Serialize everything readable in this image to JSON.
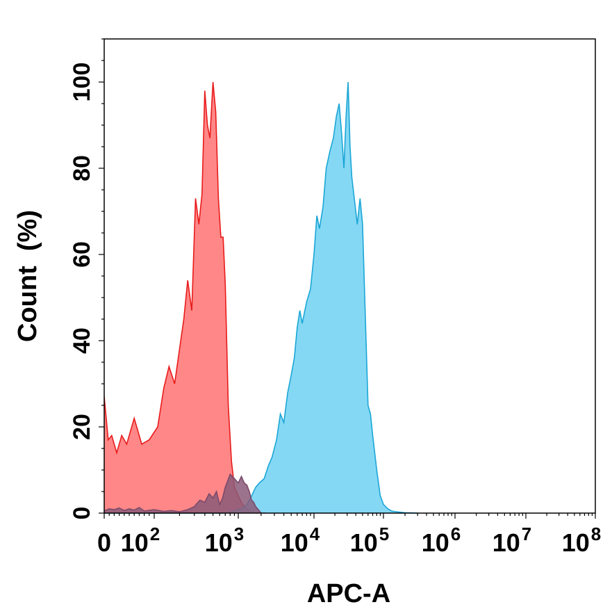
{
  "chart_data": {
    "type": "area",
    "title": "",
    "xlabel": "APC-A",
    "ylabel": "Count  (%)",
    "x_scale": "biexponential",
    "xlim": [
      0,
      100000000
    ],
    "ylim": [
      0,
      110
    ],
    "grid": false,
    "y_ticks": [
      {
        "value": 0,
        "label": "0"
      },
      {
        "value": 20,
        "label": "20"
      },
      {
        "value": 40,
        "label": "40"
      },
      {
        "value": 60,
        "label": "60"
      },
      {
        "value": 80,
        "label": "80"
      },
      {
        "value": 100,
        "label": "100"
      }
    ],
    "x_ticks": [
      {
        "value": 0,
        "base": "0",
        "exp": ""
      },
      {
        "value": 100,
        "base": "10",
        "exp": "2"
      },
      {
        "value": 1000,
        "base": "10",
        "exp": "3"
      },
      {
        "value": 10000,
        "base": "10",
        "exp": "4"
      },
      {
        "value": 100000,
        "base": "10",
        "exp": "5"
      },
      {
        "value": 1000000,
        "base": "10",
        "exp": "6"
      },
      {
        "value": 10000000,
        "base": "10",
        "exp": "7"
      },
      {
        "value": 100000000,
        "base": "10",
        "exp": "8"
      }
    ],
    "series": [
      {
        "color": "#ff5f5f",
        "stroke": "#e81b1b",
        "x": [
          0,
          8,
          15,
          25,
          35,
          45,
          60,
          75,
          90,
          110,
          130,
          150,
          175,
          200,
          225,
          250,
          280,
          310,
          340,
          370,
          400,
          430,
          460,
          500,
          540,
          580,
          620,
          660,
          700,
          760,
          830,
          900,
          1000,
          1100,
          1200,
          1350,
          1500,
          1700,
          1900,
          2100,
          2300
        ],
        "values": [
          27,
          17,
          18,
          14,
          18,
          16,
          22,
          16,
          17,
          20,
          29,
          34,
          30,
          38,
          45,
          54,
          47,
          73,
          67,
          74,
          98,
          90,
          87,
          100,
          93,
          73,
          64,
          64,
          53,
          25,
          12,
          6,
          4,
          2.5,
          1.5,
          0.8,
          0.4,
          0.2,
          0.1,
          0.05,
          0
        ]
      },
      {
        "color": "#5ccbf0",
        "stroke": "#1aa6d6",
        "x": [
          0,
          50,
          150,
          300,
          500,
          700,
          900,
          1100,
          1300,
          1500,
          1700,
          1900,
          2200,
          2500,
          2800,
          3200,
          3600,
          4000,
          4500,
          5000,
          5500,
          6000,
          6500,
          7000,
          8000,
          9000,
          10000,
          11000,
          12000,
          13500,
          15000,
          17000,
          19000,
          21000,
          23000,
          25000,
          27000,
          29000,
          31000,
          33000,
          35000,
          38000,
          42000,
          46000,
          50000,
          55000,
          60000,
          65000,
          70000,
          80000,
          90000,
          100000,
          115000,
          130000,
          150000,
          175000,
          200000,
          250000,
          300000
        ],
        "values": [
          0,
          0,
          0,
          0,
          0,
          0,
          0.5,
          1,
          2,
          4,
          6,
          7,
          8,
          11,
          13,
          17,
          23,
          21,
          28,
          32,
          36,
          43,
          47,
          44,
          49,
          52,
          60,
          69,
          66,
          71,
          80,
          84,
          87,
          92,
          95,
          88,
          80,
          92,
          100,
          85,
          78,
          73,
          67,
          73,
          67,
          45,
          25,
          23,
          18,
          10,
          4,
          2,
          1,
          0.5,
          0.3,
          0.2,
          0.1,
          0.05,
          0
        ]
      },
      {
        "color": "#8a5a78",
        "stroke": "#7a4a6a",
        "x": [
          0,
          10,
          20,
          30,
          40,
          50,
          60,
          70,
          80,
          100,
          130,
          160,
          200,
          250,
          300,
          350,
          400,
          450,
          500,
          550,
          600,
          650,
          700,
          800,
          900,
          1000,
          1100,
          1200,
          1300,
          1400,
          1500,
          1600,
          1700,
          1800,
          1900,
          2000
        ],
        "values": [
          0.5,
          1,
          0.8,
          1.2,
          0.6,
          1.0,
          0.7,
          1.3,
          0.5,
          0.8,
          0.4,
          0.6,
          0.3,
          0.8,
          1.5,
          3,
          2.5,
          4.5,
          3.5,
          5,
          2,
          3.5,
          6,
          9,
          8,
          7,
          8.5,
          7,
          6.5,
          5,
          3,
          2.5,
          1.5,
          1,
          0.5,
          0
        ]
      }
    ]
  }
}
